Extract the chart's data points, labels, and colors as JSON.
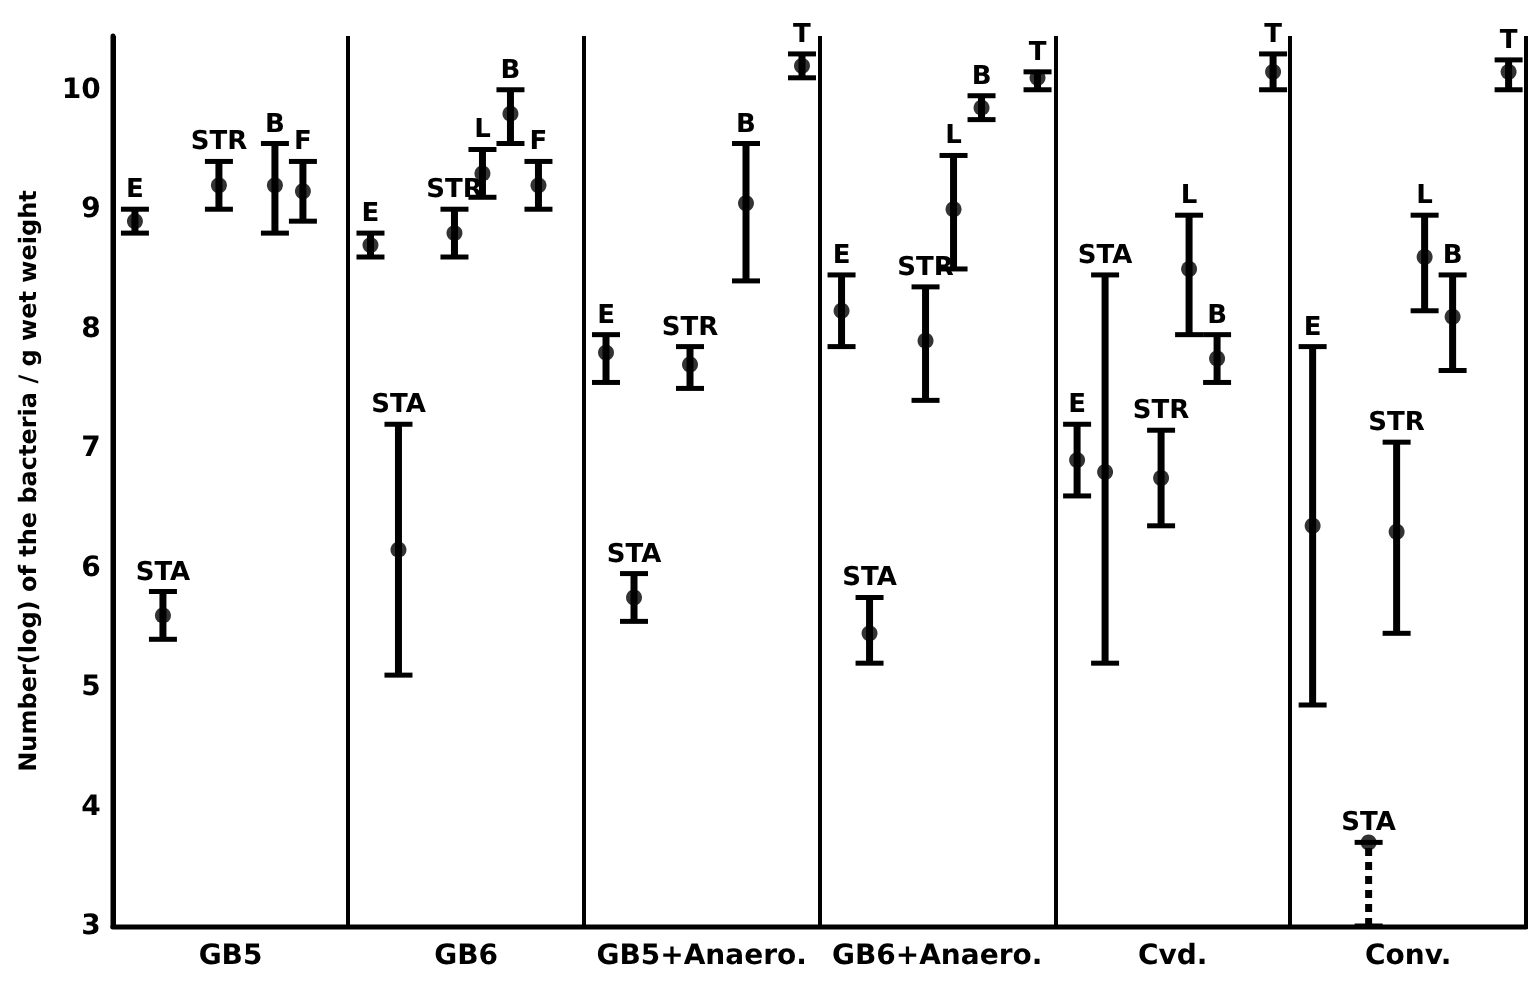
{
  "chart_data": {
    "type": "scatter",
    "ylabel": "Number(log) of the bacteria / g wet weight",
    "categories": [
      "GB5",
      "GB6",
      "GB5+Anaero.",
      "GB6+Anaero.",
      "Cvd.",
      "Conv."
    ],
    "ylim": [
      3,
      10.45
    ],
    "yticks": [
      3,
      4,
      5,
      6,
      7,
      8,
      9,
      10
    ],
    "grid": "x",
    "marker": "circle",
    "line_style": "solid",
    "series": [
      {
        "name": "E",
        "color": "#000000",
        "values": [
          8.9,
          8.7,
          7.8,
          8.15,
          6.9,
          6.35
        ],
        "errors": [
          [
            8.8,
            9.0
          ],
          [
            8.6,
            8.8
          ],
          [
            7.55,
            7.95
          ],
          [
            7.85,
            8.45
          ],
          [
            6.6,
            7.2
          ],
          [
            4.85,
            7.85
          ]
        ]
      },
      {
        "name": "STA",
        "color": "#000000",
        "values": [
          5.6,
          6.15,
          5.75,
          5.45,
          6.8,
          null
        ],
        "errors": [
          [
            5.4,
            5.8
          ],
          [
            5.1,
            7.2
          ],
          [
            5.55,
            5.95
          ],
          [
            5.2,
            5.75
          ],
          [
            5.2,
            8.45
          ],
          null
        ]
      },
      {
        "name": "STA",
        "color": "#000000",
        "line_style": "dashed",
        "values": [
          null,
          null,
          null,
          null,
          null,
          3.7
        ],
        "errors": [
          null,
          null,
          null,
          null,
          null,
          [
            3,
            3.7
          ]
        ]
      },
      {
        "name": "STR",
        "color": "#000000",
        "values": [
          9.2,
          8.8,
          7.7,
          7.9,
          6.75,
          6.3
        ],
        "errors": [
          [
            9.0,
            9.4
          ],
          [
            8.6,
            9.0
          ],
          [
            7.5,
            7.85
          ],
          [
            7.4,
            8.35
          ],
          [
            6.35,
            7.15
          ],
          [
            5.45,
            7.05
          ]
        ]
      },
      {
        "name": "L",
        "color": "#000000",
        "values": [
          null,
          9.3,
          null,
          9.0,
          8.5,
          8.6
        ],
        "errors": [
          null,
          [
            9.1,
            9.5
          ],
          null,
          [
            8.5,
            9.45
          ],
          [
            7.95,
            8.95
          ],
          [
            8.15,
            8.95
          ]
        ]
      },
      {
        "name": "B",
        "color": "#000000",
        "values": [
          9.2,
          9.8,
          9.05,
          9.85,
          7.75,
          8.1
        ],
        "errors": [
          [
            8.8,
            9.55
          ],
          [
            9.55,
            10.0
          ],
          [
            8.4,
            9.55
          ],
          [
            9.75,
            9.95
          ],
          [
            7.55,
            7.95
          ],
          [
            7.65,
            8.45
          ]
        ]
      },
      {
        "name": "F",
        "color": "#000000",
        "values": [
          9.15,
          9.2,
          null,
          null,
          null,
          null
        ],
        "errors": [
          [
            8.9,
            9.4
          ],
          [
            9.0,
            9.4
          ],
          null,
          null,
          null,
          null
        ]
      },
      {
        "name": "T",
        "color": "#000000",
        "values": [
          null,
          null,
          10.2,
          10.1,
          10.15,
          10.15
        ],
        "errors": [
          null,
          null,
          [
            10.1,
            10.3
          ],
          [
            10.0,
            10.15
          ],
          [
            10.0,
            10.3
          ],
          [
            10.0,
            10.25
          ]
        ]
      }
    ]
  }
}
